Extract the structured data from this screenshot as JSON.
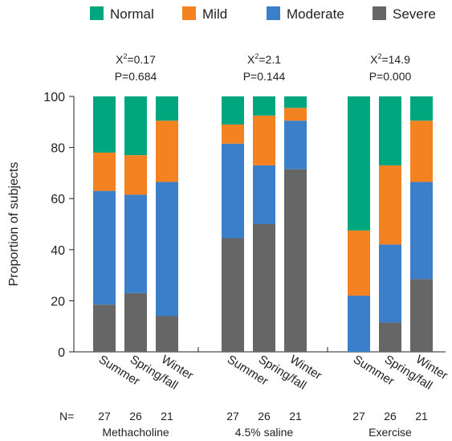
{
  "chart_data": {
    "type": "bar",
    "stacked": true,
    "ylabel": "Proportion of subjects",
    "ylim": [
      0,
      100
    ],
    "yticks": [
      0,
      20,
      40,
      60,
      80,
      100
    ],
    "legend_placement": "top",
    "series": [
      {
        "name": "Severe",
        "color": "#666666"
      },
      {
        "name": "Moderate",
        "color": "#3b7fcb"
      },
      {
        "name": "Mild",
        "color": "#f58220"
      },
      {
        "name": "Normal",
        "color": "#00a67e"
      }
    ],
    "legend_order": [
      "Normal",
      "Mild",
      "Moderate",
      "Severe"
    ],
    "n_label": "N=",
    "groups": [
      {
        "name": "Methacholine",
        "stat_chi": "X",
        "stat_chi_sup": "2",
        "stat_chi_value": "=0.17",
        "stat_p": "P=0.684",
        "bars": [
          {
            "category": "Summer",
            "n": "27",
            "Severe": 18.5,
            "Moderate": 44.5,
            "Mild": 15.0,
            "Normal": 22.0
          },
          {
            "category": "Spring/fall",
            "n": "26",
            "Severe": 23.0,
            "Moderate": 38.5,
            "Mild": 15.5,
            "Normal": 23.0
          },
          {
            "category": "Winter",
            "n": "21",
            "Severe": 14.0,
            "Moderate": 52.5,
            "Mild": 24.0,
            "Normal": 9.5
          }
        ]
      },
      {
        "name": "4.5% saline",
        "stat_chi": "X",
        "stat_chi_sup": "2",
        "stat_chi_value": "=2.1",
        "stat_p": "P=0.144",
        "bars": [
          {
            "category": "Summer",
            "n": "27",
            "Severe": 44.5,
            "Moderate": 37.0,
            "Mild": 7.5,
            "Normal": 11.0
          },
          {
            "category": "Spring/fall",
            "n": "26",
            "Severe": 50.0,
            "Moderate": 23.0,
            "Mild": 19.5,
            "Normal": 7.5
          },
          {
            "category": "Winter",
            "n": "21",
            "Severe": 71.5,
            "Moderate": 19.0,
            "Mild": 5.0,
            "Normal": 4.5
          }
        ]
      },
      {
        "name": "Exercise",
        "stat_chi": "X",
        "stat_chi_sup": "2",
        "stat_chi_value": "=14.9",
        "stat_p": "P=0.000",
        "bars": [
          {
            "category": "Summer",
            "n": "27",
            "Severe": 0.0,
            "Moderate": 22.0,
            "Mild": 25.5,
            "Normal": 52.5
          },
          {
            "category": "Spring/fall",
            "n": "26",
            "Severe": 11.5,
            "Moderate": 30.5,
            "Mild": 31.0,
            "Normal": 27.0
          },
          {
            "category": "Winter",
            "n": "21",
            "Severe": 28.5,
            "Moderate": 38.0,
            "Mild": 24.0,
            "Normal": 9.5
          }
        ]
      }
    ]
  }
}
